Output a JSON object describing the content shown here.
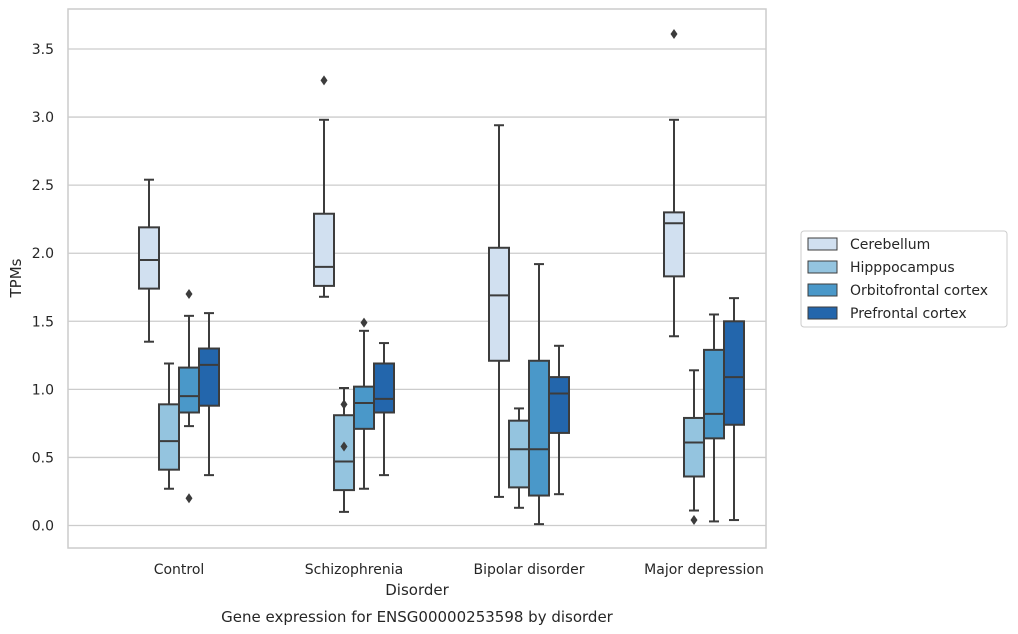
{
  "chart_data": {
    "type": "box",
    "title": "",
    "caption": "Gene expression for ENSG00000253598 by disorder",
    "xlabel": "Disorder",
    "ylabel": "TPMs",
    "ylim": [
      -0.16,
      3.78
    ],
    "yticks": [
      0.0,
      0.5,
      1.0,
      1.5,
      2.0,
      2.5,
      3.0,
      3.5
    ],
    "ytick_labels": [
      "0.0",
      "0.5",
      "1.0",
      "1.5",
      "2.0",
      "2.5",
      "3.0",
      "3.5"
    ],
    "grid": "horizontal",
    "legend_position": "right",
    "categories": [
      "Control",
      "Schizophrenia",
      "Bipolar disorder",
      "Major depression"
    ],
    "series": [
      {
        "name": "Cerebellum",
        "color": "#d1e0f0",
        "boxes": [
          {
            "whislo": 1.35,
            "q1": 1.74,
            "med": 1.95,
            "q3": 2.19,
            "whishi": 2.54,
            "fliers": []
          },
          {
            "whislo": 1.68,
            "q1": 1.76,
            "med": 1.9,
            "q3": 2.29,
            "whishi": 2.98,
            "fliers": [
              3.27
            ]
          },
          {
            "whislo": 0.21,
            "q1": 1.21,
            "med": 1.69,
            "q3": 2.04,
            "whishi": 2.94,
            "fliers": []
          },
          {
            "whislo": 1.39,
            "q1": 1.83,
            "med": 2.22,
            "q3": 2.3,
            "whishi": 2.98,
            "fliers": [
              3.61
            ]
          }
        ]
      },
      {
        "name": "Hipppocampus",
        "color": "#94c4df",
        "boxes": [
          {
            "whislo": 0.27,
            "q1": 0.41,
            "med": 0.62,
            "q3": 0.89,
            "whishi": 1.19,
            "fliers": []
          },
          {
            "whislo": 0.1,
            "q1": 0.26,
            "med": 0.47,
            "q3": 0.81,
            "whishi": 1.01,
            "fliers": [
              0.89,
              0.58
            ]
          },
          {
            "whislo": 0.13,
            "q1": 0.28,
            "med": 0.56,
            "q3": 0.77,
            "whishi": 0.86,
            "fliers": []
          },
          {
            "whislo": 0.11,
            "q1": 0.36,
            "med": 0.61,
            "q3": 0.79,
            "whishi": 1.14,
            "fliers": [
              0.04
            ]
          }
        ]
      },
      {
        "name": "Orbitofrontal cortex",
        "color": "#4a98c9",
        "boxes": [
          {
            "whislo": 0.73,
            "q1": 0.83,
            "med": 0.95,
            "q3": 1.16,
            "whishi": 1.54,
            "fliers": [
              1.7,
              0.2
            ]
          },
          {
            "whislo": 0.27,
            "q1": 0.71,
            "med": 0.9,
            "q3": 1.02,
            "whishi": 1.43,
            "fliers": [
              1.49
            ]
          },
          {
            "whislo": 0.01,
            "q1": 0.22,
            "med": 0.56,
            "q3": 1.21,
            "whishi": 1.92,
            "fliers": []
          },
          {
            "whislo": 0.03,
            "q1": 0.64,
            "med": 0.82,
            "q3": 1.29,
            "whishi": 1.55,
            "fliers": []
          }
        ]
      },
      {
        "name": "Prefrontal cortex",
        "color": "#2366ac",
        "boxes": [
          {
            "whislo": 0.37,
            "q1": 0.88,
            "med": 1.18,
            "q3": 1.3,
            "whishi": 1.56,
            "fliers": []
          },
          {
            "whislo": 0.37,
            "q1": 0.83,
            "med": 0.93,
            "q3": 1.19,
            "whishi": 1.34,
            "fliers": []
          },
          {
            "whislo": 0.23,
            "q1": 0.68,
            "med": 0.97,
            "q3": 1.09,
            "whishi": 1.32,
            "fliers": []
          },
          {
            "whislo": 0.04,
            "q1": 0.74,
            "med": 1.09,
            "q3": 1.5,
            "whishi": 1.67,
            "fliers": []
          }
        ]
      }
    ],
    "colors": {
      "edge": "#3c3c3c",
      "grid": "#cccccc",
      "frame": "#cccccc",
      "text": "#262626"
    }
  }
}
